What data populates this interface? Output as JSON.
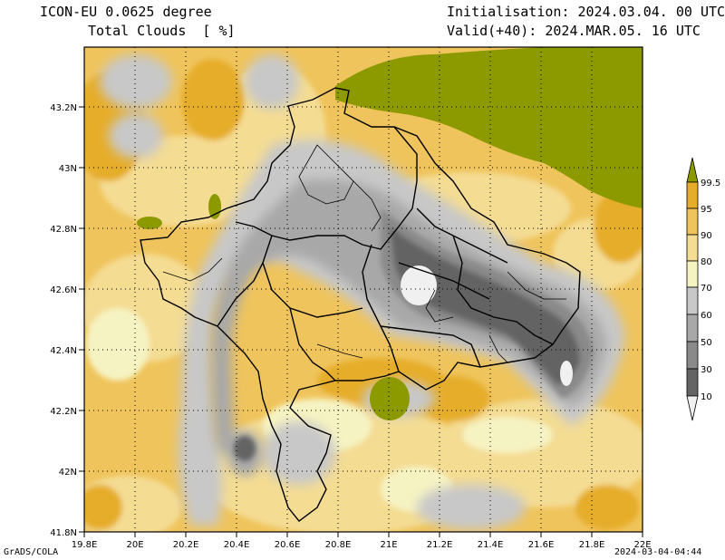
{
  "header": {
    "model": "ICON-EU 0.0625 degree",
    "variable": "Total Clouds  [ %]",
    "init": "Initialisation: 2024.03.04. 00 UTC",
    "valid": "Valid(+40): 2024.MAR.05. 16 UTC"
  },
  "footer": {
    "software": "GrADS/COLA",
    "timestamp": "2024-03-04-04:44"
  },
  "axes": {
    "x_ticks": [
      "19.8E",
      "20E",
      "20.2E",
      "20.4E",
      "20.6E",
      "20.8E",
      "21E",
      "21.2E",
      "21.4E",
      "21.6E",
      "21.8E",
      "22E"
    ],
    "y_ticks": [
      "43.2N",
      "43N",
      "42.8N",
      "42.6N",
      "42.4N",
      "42.2N",
      "42N",
      "41.8N"
    ]
  },
  "colorbar": {
    "labels": [
      "99.5",
      "95",
      "90",
      "80",
      "70",
      "60",
      "50",
      "30",
      "10"
    ],
    "colors": [
      "#8c9a00",
      "#e6ad2b",
      "#efc45c",
      "#f4dc93",
      "#f6f3c2",
      "#c8c8c8",
      "#a8a8a8",
      "#8a8a8a",
      "#646464",
      "#f0f0f0"
    ]
  }
}
